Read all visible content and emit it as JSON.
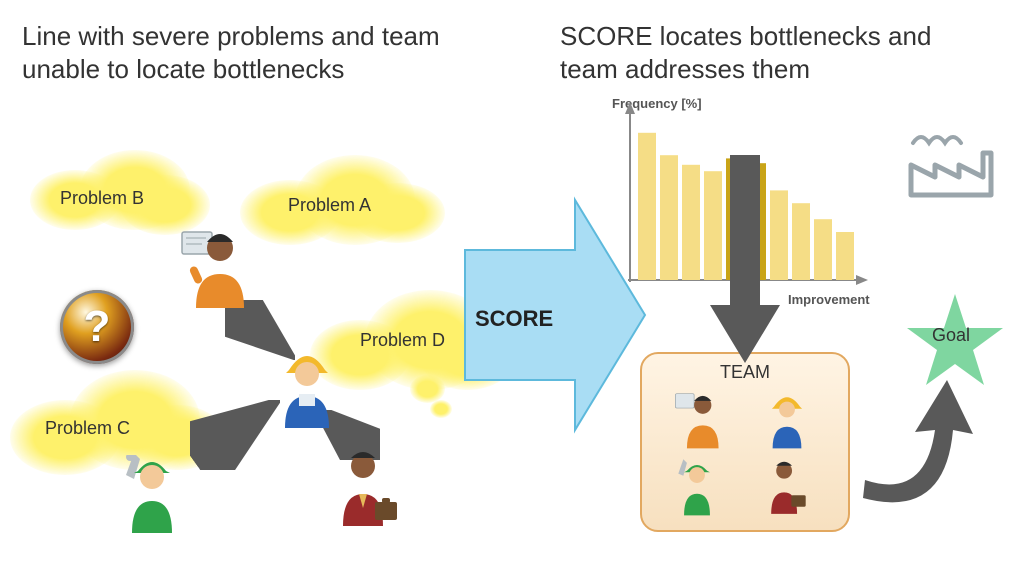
{
  "headings": {
    "left": "Line with severe problems and team unable to locate bottlenecks",
    "right": "SCORE locates bottlenecks and team addresses them"
  },
  "clouds": {
    "a": {
      "label": "Problem A",
      "color": "#fef16b"
    },
    "b": {
      "label": "Problem B",
      "color": "#fef16b"
    },
    "c": {
      "label": "Problem C",
      "color": "#fef16b"
    },
    "d": {
      "label": "Problem D",
      "color": "#fef16b"
    }
  },
  "qmark": {
    "glyph": "?"
  },
  "score": {
    "label": "SCORE",
    "fill": "#a9ddf4",
    "stroke": "#5db9dc"
  },
  "arrows": {
    "color": "#595959"
  },
  "chart": {
    "type": "bar",
    "y_title": "Frequency [%]",
    "x_title": "Improvement",
    "values": [
      92,
      78,
      72,
      68,
      76,
      73,
      56,
      48,
      38,
      30
    ],
    "highlight_indices": [
      4,
      5
    ],
    "bar_color": "#f5dd86",
    "highlight_color": "#cca该16",
    "highlight_color_hex": "#c9a417",
    "axis_color": "#888888",
    "ylim": [
      0,
      100
    ]
  },
  "factory": {
    "stroke": "#9aa5ab"
  },
  "team": {
    "label": "TEAM",
    "border": "#e2a860",
    "bg_top": "#fff4e4",
    "bg_bottom": "#f7e0bf"
  },
  "goal": {
    "label": "Goal",
    "fill": "#7fd6a0"
  },
  "people": {
    "presenter": {
      "shirt": "#e88b2b",
      "skin": "#8a5a3a",
      "board": "#dfe6ea"
    },
    "hardhat": {
      "shirt": "#2b64b8",
      "skin": "#f3c999",
      "hat": "#f3b92c"
    },
    "mechanic": {
      "shirt": "#2fa34a",
      "skin": "#f3c999",
      "cap": "#2fa34a",
      "wrench": "#b8bfc4"
    },
    "briefcase": {
      "shirt": "#9a2b2b",
      "skin": "#8a5a3a",
      "case": "#6a4a2a"
    }
  }
}
